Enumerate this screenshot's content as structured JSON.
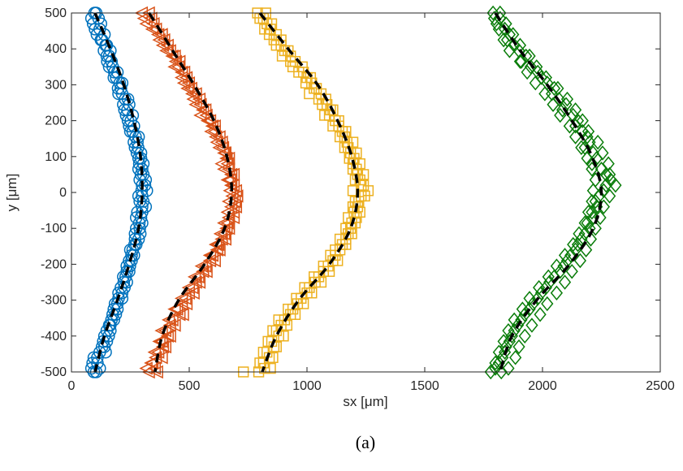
{
  "chart_data": {
    "type": "scatter",
    "xlabel": "sx [μm]",
    "ylabel": "y [μm]",
    "xlim": [
      0,
      2500
    ],
    "ylim": [
      -500,
      500
    ],
    "x_ticks": [
      0,
      500,
      1000,
      1500,
      2000,
      2500
    ],
    "y_ticks": [
      500,
      400,
      300,
      200,
      100,
      0,
      -100,
      -200,
      -300,
      -400,
      -500
    ],
    "grid": false,
    "legend": "none",
    "caption": "(a)",
    "fit_line_color": "#000000",
    "series": [
      {
        "marker": "circle",
        "color": "#0072BD",
        "fit": {
          "y": [
            500,
            400,
            300,
            200,
            100,
            0,
            -100,
            -200,
            -300,
            -400,
            -500
          ],
          "x": [
            100,
            165,
            222,
            265,
            293,
            300,
            285,
            245,
            195,
            140,
            100
          ]
        },
        "points_y": [
          500,
          485,
          470,
          455,
          440,
          425,
          410,
          395,
          380,
          365,
          350,
          335,
          320,
          305,
          290,
          275,
          260,
          245,
          230,
          215,
          200,
          185,
          170,
          155,
          140,
          125,
          110,
          95,
          80,
          65,
          50,
          35,
          20,
          5,
          -10,
          -25,
          -40,
          -55,
          -70,
          -85,
          -100,
          -115,
          -130,
          -145,
          -160,
          -175,
          -190,
          -205,
          -220,
          -235,
          -250,
          -265,
          -280,
          -295,
          -310,
          -325,
          -340,
          -355,
          -370,
          -385,
          -400,
          -415,
          -430,
          -445,
          -460,
          -475,
          -490,
          -500
        ],
        "points_x": [
          98,
          115,
          92,
          120,
          108,
          130,
          145,
          138,
          160,
          152,
          175,
          182,
          190,
          205,
          198,
          215,
          228,
          220,
          238,
          232,
          252,
          245,
          260,
          272,
          265,
          283,
          278,
          295,
          288,
          300,
          305,
          290,
          312,
          298,
          285,
          305,
          300,
          280,
          295,
          288,
          275,
          292,
          270,
          268,
          260,
          255,
          245,
          248,
          235,
          230,
          222,
          210,
          215,
          200,
          195,
          180,
          188,
          170,
          165,
          150,
          158,
          135,
          140,
          120,
          95,
          110,
          85,
          105
        ],
        "points_x_alt": [
          105,
          85,
          125,
          100,
          140,
          125,
          150,
          165,
          150,
          170,
          160,
          195,
          180,
          215,
          210,
          200,
          240,
          245,
          225,
          260,
          240,
          265,
          250,
          285,
          280,
          270,
          295,
          285,
          305,
          285,
          295,
          315,
          300,
          320,
          300,
          290,
          315,
          300,
          275,
          300,
          290,
          270,
          285,
          275,
          250,
          265,
          255,
          235,
          245,
          220,
          235,
          225,
          200,
          215,
          185,
          195,
          175,
          180,
          160,
          165,
          140,
          150,
          130,
          145,
          110,
          90,
          120,
          95
        ]
      },
      {
        "marker": "triangle-left",
        "color": "#D95319",
        "fit": {
          "y": [
            500,
            400,
            300,
            200,
            100,
            0,
            -100,
            -200,
            -300,
            -400,
            -500
          ],
          "x": [
            330,
            425,
            520,
            605,
            660,
            680,
            650,
            565,
            455,
            385,
            355
          ]
        },
        "points_y": [
          500,
          485,
          470,
          455,
          440,
          425,
          410,
          395,
          380,
          365,
          350,
          335,
          320,
          305,
          290,
          275,
          260,
          245,
          230,
          215,
          200,
          185,
          170,
          155,
          140,
          125,
          110,
          95,
          80,
          65,
          50,
          35,
          20,
          5,
          -10,
          -25,
          -40,
          -55,
          -70,
          -85,
          -100,
          -115,
          -130,
          -145,
          -160,
          -175,
          -190,
          -205,
          -220,
          -235,
          -250,
          -265,
          -280,
          -295,
          -310,
          -325,
          -340,
          -355,
          -370,
          -385,
          -400,
          -415,
          -430,
          -445,
          -460,
          -475,
          -490,
          -500
        ],
        "points_x": [
          300,
          340,
          320,
          360,
          370,
          395,
          390,
          420,
          430,
          445,
          455,
          470,
          490,
          480,
          510,
          530,
          520,
          550,
          560,
          575,
          590,
          600,
          610,
          630,
          620,
          645,
          650,
          660,
          640,
          670,
          680,
          675,
          690,
          700,
          685,
          695,
          680,
          690,
          670,
          665,
          660,
          650,
          640,
          625,
          620,
          600,
          590,
          570,
          560,
          540,
          530,
          515,
          500,
          485,
          470,
          450,
          460,
          430,
          420,
          400,
          410,
          385,
          390,
          370,
          360,
          340,
          355,
          330
        ],
        "points_x_alt": [
          330,
          310,
          350,
          345,
          385,
          375,
          410,
          405,
          440,
          460,
          440,
          480,
          470,
          500,
          495,
          515,
          545,
          530,
          570,
          550,
          580,
          610,
          595,
          615,
          640,
          630,
          655,
          670,
          665,
          650,
          690,
          665,
          680,
          675,
          705,
          670,
          700,
          665,
          690,
          650,
          670,
          635,
          655,
          615,
          630,
          590,
          610,
          555,
          575,
          525,
          545,
          500,
          520,
          470,
          490,
          440,
          475,
          415,
          440,
          385,
          420,
          375,
          400,
          355,
          385,
          345,
          320,
          365
        ]
      },
      {
        "marker": "square",
        "color": "#EDB120",
        "fit": {
          "y": [
            500,
            400,
            300,
            200,
            100,
            0,
            -100,
            -200,
            -300,
            -400,
            -500
          ],
          "x": [
            800,
            920,
            1045,
            1130,
            1190,
            1215,
            1185,
            1095,
            965,
            870,
            810
          ]
        },
        "points_y": [
          500,
          485,
          470,
          455,
          440,
          425,
          410,
          395,
          380,
          365,
          350,
          335,
          320,
          305,
          290,
          275,
          260,
          245,
          230,
          215,
          200,
          185,
          170,
          155,
          140,
          125,
          110,
          95,
          80,
          65,
          50,
          35,
          20,
          5,
          -10,
          -25,
          -40,
          -55,
          -70,
          -85,
          -100,
          -115,
          -130,
          -145,
          -160,
          -175,
          -190,
          -205,
          -220,
          -235,
          -250,
          -265,
          -280,
          -295,
          -310,
          -325,
          -340,
          -355,
          -370,
          -385,
          -400,
          -415,
          -430,
          -445,
          -460,
          -475,
          -490,
          -500
        ],
        "points_x": [
          790,
          815,
          830,
          845,
          870,
          860,
          890,
          905,
          930,
          950,
          940,
          985,
          1000,
          1020,
          1040,
          1060,
          1050,
          1085,
          1100,
          1095,
          1120,
          1135,
          1150,
          1160,
          1170,
          1175,
          1185,
          1200,
          1195,
          1210,
          1215,
          1225,
          1240,
          1260,
          1230,
          1220,
          1215,
          1200,
          1210,
          1190,
          1185,
          1175,
          1165,
          1150,
          1140,
          1120,
          1110,
          1090,
          1070,
          1050,
          1035,
          1010,
          1000,
          975,
          960,
          940,
          930,
          905,
          890,
          870,
          880,
          850,
          860,
          830,
          840,
          815,
          820,
          730
        ],
        "points_x_alt": [
          825,
          800,
          850,
          820,
          840,
          890,
          870,
          920,
          895,
          930,
          980,
          965,
          1015,
          995,
          1030,
          1010,
          1080,
          1065,
          1110,
          1075,
          1135,
          1110,
          1165,
          1140,
          1195,
          1160,
          1210,
          1180,
          1225,
          1195,
          1240,
          1205,
          1230,
          1195,
          1245,
          1205,
          1195,
          1225,
          1175,
          1205,
          1165,
          1190,
          1140,
          1165,
          1120,
          1100,
          1130,
          1070,
          1095,
          1030,
          1060,
          990,
          1020,
          955,
          985,
          920,
          950,
          880,
          915,
          855,
          900,
          835,
          870,
          815,
          855,
          800,
          845,
          795
        ]
      },
      {
        "marker": "diamond",
        "color": "#0A7D0A",
        "fit": {
          "y": [
            500,
            400,
            300,
            200,
            100,
            0,
            -100,
            -200,
            -300,
            -400,
            -500
          ],
          "x": [
            1800,
            1900,
            2020,
            2125,
            2210,
            2250,
            2215,
            2115,
            1975,
            1870,
            1820
          ]
        },
        "points_y": [
          500,
          485,
          470,
          455,
          440,
          425,
          410,
          395,
          380,
          365,
          350,
          335,
          320,
          305,
          290,
          275,
          260,
          245,
          230,
          215,
          200,
          185,
          170,
          155,
          140,
          125,
          110,
          95,
          80,
          65,
          50,
          35,
          20,
          5,
          -10,
          -25,
          -40,
          -55,
          -70,
          -85,
          -100,
          -115,
          -130,
          -145,
          -160,
          -175,
          -190,
          -205,
          -220,
          -235,
          -250,
          -265,
          -280,
          -295,
          -310,
          -325,
          -340,
          -355,
          -370,
          -385,
          -400,
          -415,
          -430,
          -445,
          -460,
          -475,
          -490,
          -500
        ],
        "points_x": [
          1790,
          1820,
          1805,
          1840,
          1860,
          1850,
          1880,
          1900,
          1930,
          1910,
          1950,
          1980,
          1995,
          2020,
          2050,
          2040,
          2070,
          2100,
          2085,
          2130,
          2150,
          2140,
          2170,
          2190,
          2200,
          2180,
          2215,
          2230,
          2210,
          2250,
          2270,
          2290,
          2310,
          2260,
          2240,
          2225,
          2230,
          2210,
          2215,
          2190,
          2200,
          2180,
          2165,
          2150,
          2140,
          2120,
          2105,
          2090,
          2075,
          2050,
          2030,
          2015,
          1995,
          1980,
          1960,
          1945,
          1925,
          1910,
          1895,
          1880,
          1870,
          1860,
          1845,
          1840,
          1830,
          1815,
          1800,
          1780
        ],
        "points_x_alt": [
          1820,
          1795,
          1845,
          1815,
          1875,
          1835,
          1905,
          1860,
          1945,
          1905,
          1975,
          1935,
          2015,
          1970,
          2065,
          2010,
          2105,
          2045,
          2140,
          2075,
          2170,
          2115,
          2195,
          2140,
          2235,
          2165,
          2255,
          2190,
          2280,
          2210,
          2285,
          2225,
          2270,
          2215,
          2285,
          2210,
          2260,
          2195,
          2245,
          2180,
          2225,
          2155,
          2205,
          2130,
          2185,
          2095,
          2160,
          2060,
          2125,
          2025,
          2095,
          1985,
          2060,
          1945,
          2020,
          1915,
          1990,
          1880,
          1955,
          1855,
          1925,
          1835,
          1900,
          1815,
          1885,
          1800,
          1855,
          1825
        ]
      }
    ]
  }
}
